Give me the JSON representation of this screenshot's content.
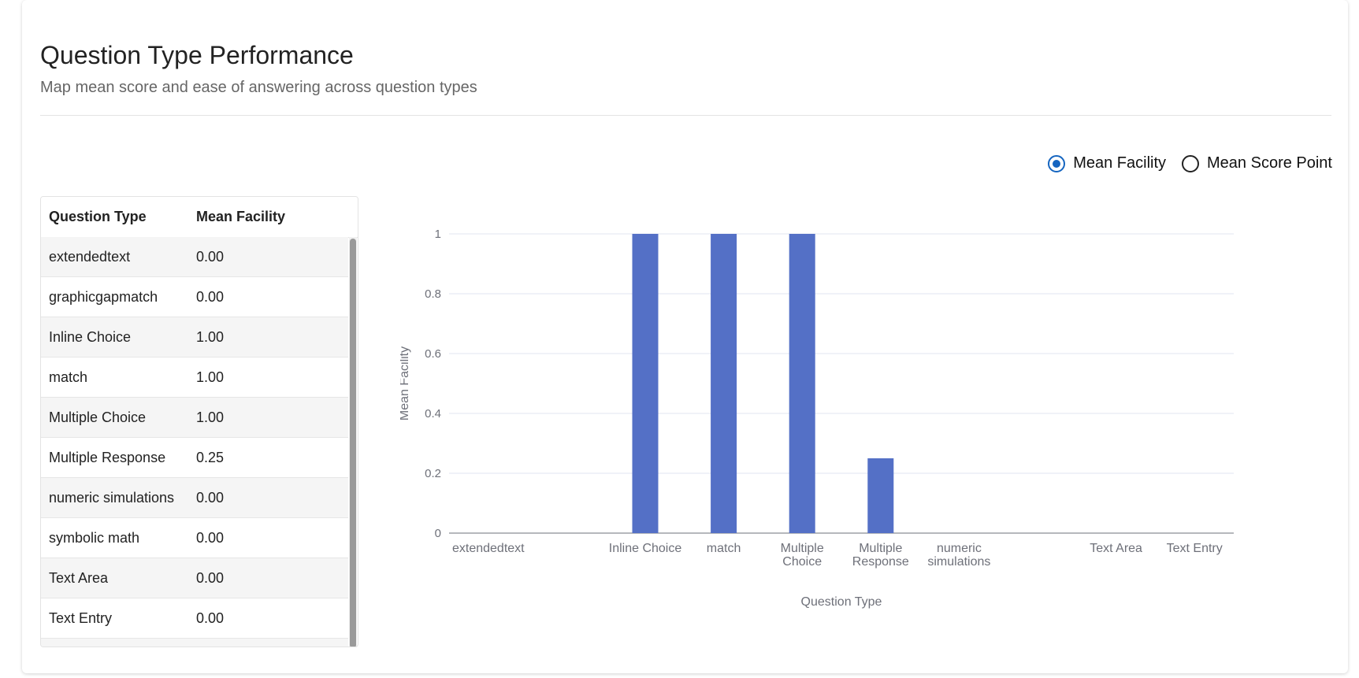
{
  "header": {
    "title": "Question Type Performance",
    "subtitle": "Map mean score and ease of answering across question types"
  },
  "toggle": {
    "options": [
      {
        "label": "Mean Facility",
        "checked": true
      },
      {
        "label": "Mean Score Point",
        "checked": false
      }
    ]
  },
  "table": {
    "headers": [
      "Question Type",
      "Mean Facility"
    ],
    "rows": [
      [
        "extendedtext",
        "0.00"
      ],
      [
        "graphicgapmatch",
        "0.00"
      ],
      [
        "Inline Choice",
        "1.00"
      ],
      [
        "match",
        "1.00"
      ],
      [
        "Multiple Choice",
        "1.00"
      ],
      [
        "Multiple Response",
        "0.25"
      ],
      [
        "numeric simulations",
        "0.00"
      ],
      [
        "symbolic math",
        "0.00"
      ],
      [
        "Text Area",
        "0.00"
      ],
      [
        "Text Entry",
        "0.00"
      ]
    ]
  },
  "colors": {
    "bar": "#5470c6",
    "accent": "#1565c0"
  },
  "chart_data": {
    "type": "bar",
    "categories": [
      "extendedtext",
      "graphicgapmatch",
      "Inline Choice",
      "match",
      "Multiple Choice",
      "Multiple Response",
      "numeric simulations",
      "symbolic math",
      "Text Area",
      "Text Entry"
    ],
    "tick_labels": [
      [
        "extendedtext"
      ],
      [],
      [
        "Inline Choice"
      ],
      [
        "match"
      ],
      [
        "Multiple",
        "Choice"
      ],
      [
        "Multiple",
        "Response"
      ],
      [
        "numeric",
        "simulations"
      ],
      [],
      [
        "Text Area"
      ],
      [
        "Text Entry"
      ]
    ],
    "values": [
      0,
      0,
      1,
      1,
      1,
      0.25,
      0,
      0,
      0,
      0
    ],
    "xlabel": "Question Type",
    "ylabel": "Mean Facility",
    "ylim": [
      0,
      1
    ],
    "yticks": [
      "0",
      "0.2",
      "0.4",
      "0.6",
      "0.8",
      "1"
    ],
    "grid": true,
    "data_zoom": true
  }
}
